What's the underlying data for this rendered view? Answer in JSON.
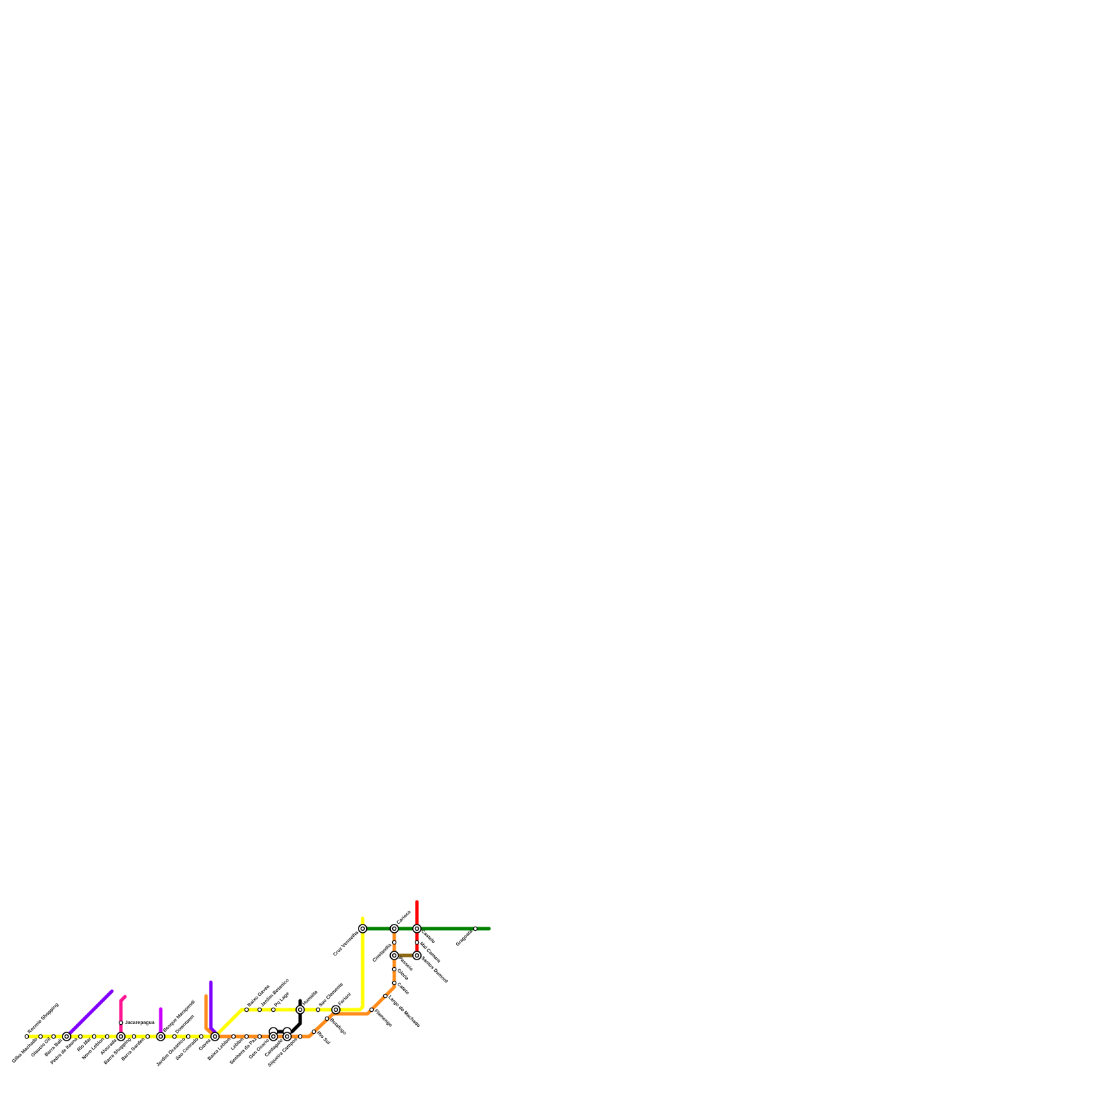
{
  "stations": [
    {
      "name": "Recreio Shopping"
    },
    {
      "name": "Gilka Machado"
    },
    {
      "name": "Glaucio Gil"
    },
    {
      "name": "Barra Bali"
    },
    {
      "name": "Pedra de Itauna"
    },
    {
      "name": "Rio Mar"
    },
    {
      "name": "Novo Leblon"
    },
    {
      "name": "Alvorada"
    },
    {
      "name": "Barra Shopping"
    },
    {
      "name": "Barra Garden"
    },
    {
      "name": "Bosque Marapendi"
    },
    {
      "name": "Downtown"
    },
    {
      "name": "Jardim Oceanico"
    },
    {
      "name": "Sao Conrado"
    },
    {
      "name": "Gavea"
    },
    {
      "name": "Baixo Leblon"
    },
    {
      "name": "Leblon"
    },
    {
      "name": "Senhora da Paz"
    },
    {
      "name": "Gen Osorio"
    },
    {
      "name": "Cantagalo"
    },
    {
      "name": "Siqueira Campos"
    },
    {
      "name": "Rio Sul"
    },
    {
      "name": "Botafogo"
    },
    {
      "name": "Flamengo"
    },
    {
      "name": "Largo do Machado"
    },
    {
      "name": "Catete"
    },
    {
      "name": "Gloria"
    },
    {
      "name": "Passeio"
    },
    {
      "name": "Cinelandia"
    },
    {
      "name": "Carioca"
    },
    {
      "name": "Baixo Gavea"
    },
    {
      "name": "Jardim Botanico"
    },
    {
      "name": "Pq Lage"
    },
    {
      "name": "Humaita"
    },
    {
      "name": "Sao Clemente"
    },
    {
      "name": "Fariani"
    },
    {
      "name": "Cruz Vermelha"
    },
    {
      "name": "Castelo"
    },
    {
      "name": "Mal Camara"
    },
    {
      "name": "Santos Dumont"
    },
    {
      "name": "Gragoata"
    },
    {
      "name": "Jacarepagua"
    }
  ]
}
